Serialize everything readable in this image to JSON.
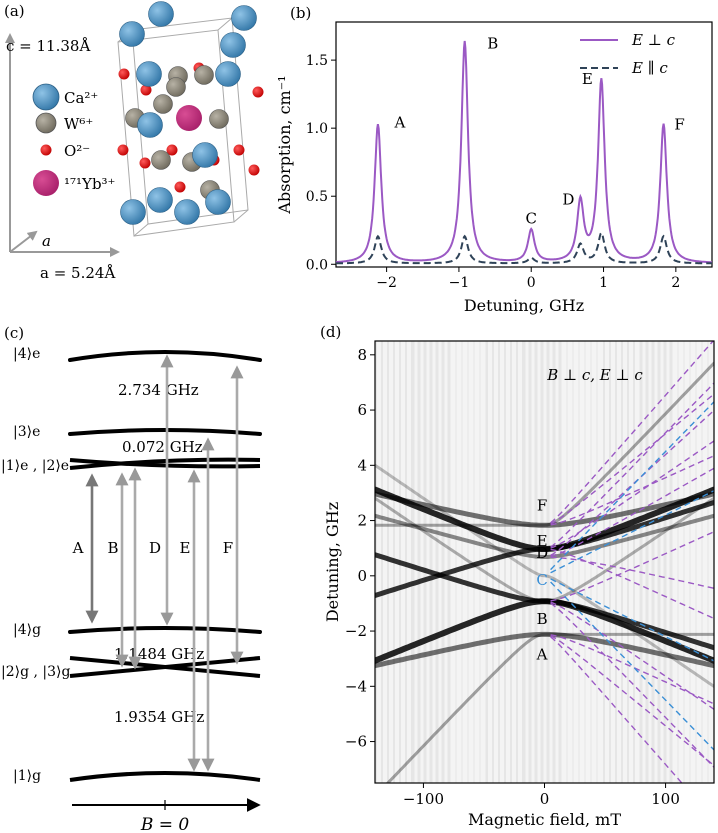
{
  "panels": {
    "a": {
      "tag": "(a)",
      "c_axis": "c = 11.38Å",
      "a_axis_short": "a",
      "a_axis": "a = 5.24Å",
      "legend": [
        {
          "label": "Ca²⁺",
          "color": "#4a8fbf"
        },
        {
          "label": "W⁶⁺",
          "color": "#8c8779"
        },
        {
          "label": "O²⁻",
          "color": "#e01515"
        },
        {
          "label": "¹⁷¹Yb³⁺",
          "color": "#c0307a"
        }
      ]
    },
    "b": {
      "tag": "(b)"
    },
    "c": {
      "tag": "(c)",
      "excited_labels": [
        "|4⟩e",
        "|3⟩e",
        "|1⟩e , |2⟩e"
      ],
      "ground_labels": [
        "|4⟩g",
        "|2⟩g , |3⟩g",
        "|1⟩g"
      ],
      "splittings": [
        "2.734 GHz",
        "0.072 GHz",
        "1.1484 GHz",
        "1.9354 GHz"
      ],
      "transitions": [
        "A",
        "B",
        "D",
        "E",
        "F"
      ],
      "b_label": "B = 0"
    },
    "d": {
      "tag": "(d)",
      "condition": "B ⊥ c, E ⊥ c",
      "line_labels": [
        "F",
        "E",
        "D",
        "C",
        "B",
        "A"
      ]
    }
  },
  "chart_data": [
    {
      "panel": "b",
      "type": "line",
      "xlabel": "Detuning, GHz",
      "ylabel": "Absorption, cm⁻¹",
      "xlim": [
        -2.7,
        2.5
      ],
      "ylim": [
        -0.02,
        1.78
      ],
      "xticks": [
        -2,
        -1,
        0,
        1,
        2
      ],
      "yticks": [
        0.0,
        0.5,
        1.0,
        1.5
      ],
      "legend_position": "top-right",
      "series": [
        {
          "name": "E ⊥ c",
          "style": "solid",
          "color": "#9b59c4",
          "peaks": [
            {
              "label": "A",
              "x": -2.12,
              "y": 1.02
            },
            {
              "label": "B",
              "x": -0.92,
              "y": 1.63
            },
            {
              "label": "C",
              "x": 0.0,
              "y": 0.24
            },
            {
              "label": "D",
              "x": 0.68,
              "y": 0.44
            },
            {
              "label": "E",
              "x": 0.97,
              "y": 1.34
            },
            {
              "label": "F",
              "x": 1.83,
              "y": 1.02
            }
          ]
        },
        {
          "name": "E ∥ c",
          "style": "dashed",
          "color": "#2f4358",
          "peaks": [
            {
              "label": "A",
              "x": -2.12,
              "y": 0.2
            },
            {
              "label": "B",
              "x": -0.92,
              "y": 0.2
            },
            {
              "label": "C",
              "x": 0.0,
              "y": 0.04
            },
            {
              "label": "D",
              "x": 0.68,
              "y": 0.14
            },
            {
              "label": "E",
              "x": 0.97,
              "y": 0.22
            },
            {
              "label": "F",
              "x": 1.83,
              "y": 0.2
            }
          ]
        }
      ]
    },
    {
      "panel": "d",
      "type": "heatmap",
      "xlabel": "Magnetic field, mT",
      "ylabel": "Detuning, GHz",
      "xlim": [
        -140,
        140
      ],
      "ylim": [
        -7.5,
        8.5
      ],
      "xticks": [
        -100,
        0,
        100
      ],
      "yticks": [
        -6,
        -4,
        -2,
        0,
        2,
        4,
        6,
        8
      ],
      "zero_field_lines": [
        {
          "label": "F",
          "y": 1.83
        },
        {
          "label": "E",
          "y": 0.97
        },
        {
          "label": "D",
          "y": 0.68
        },
        {
          "label": "C",
          "y": 0.0
        },
        {
          "label": "B",
          "y": -0.92
        },
        {
          "label": "A",
          "y": -2.12
        }
      ],
      "colors": {
        "data": "#000000",
        "fit": "#9b59c4",
        "fit_c": "#3a8fd6"
      }
    }
  ]
}
